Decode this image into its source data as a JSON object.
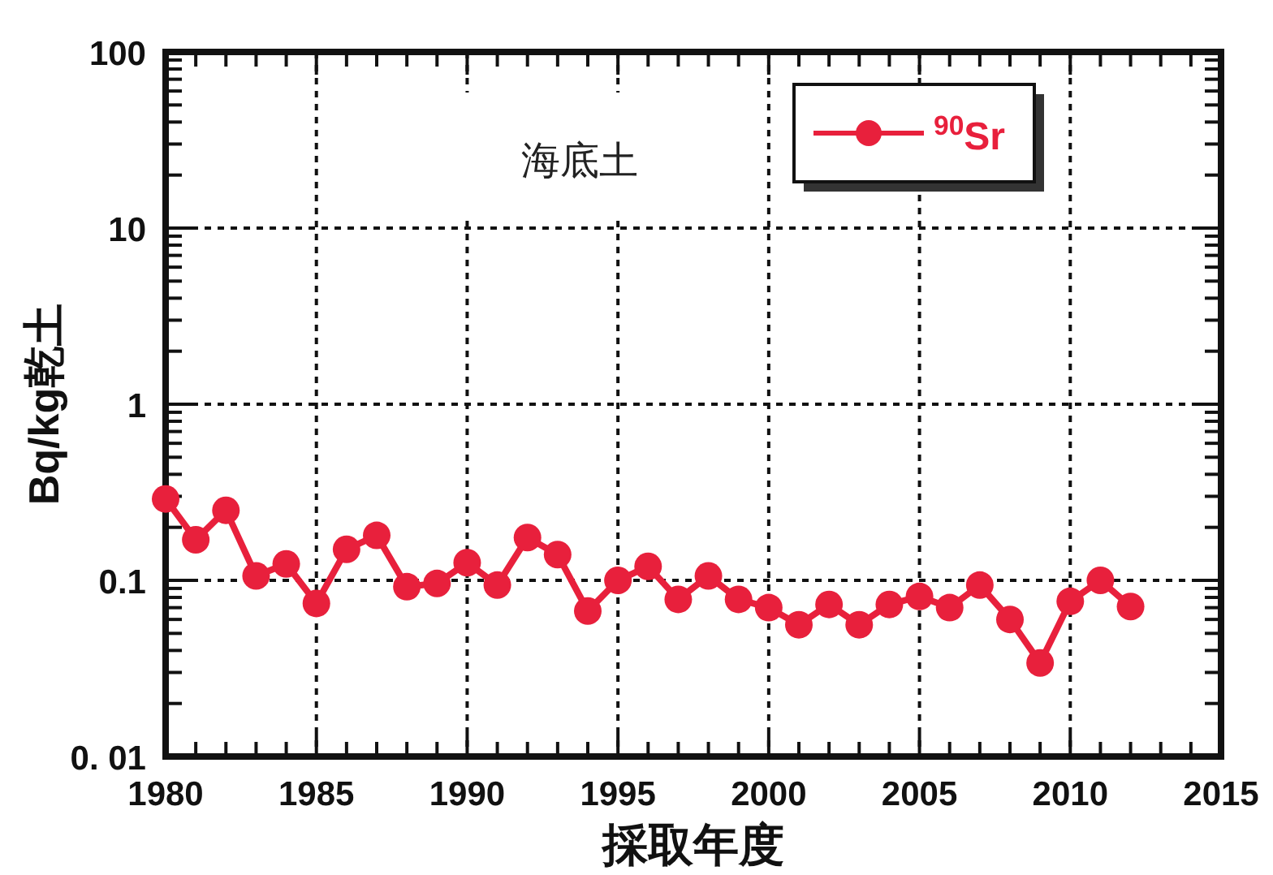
{
  "chart_data": {
    "type": "line",
    "xlabel": "採取年度",
    "ylabel": "Bq/kg乾土",
    "annotations": [
      "海底土"
    ],
    "x": [
      1980,
      1981,
      1982,
      1983,
      1984,
      1985,
      1986,
      1987,
      1988,
      1989,
      1990,
      1991,
      1992,
      1993,
      1994,
      1995,
      1996,
      1997,
      1998,
      1999,
      2000,
      2001,
      2002,
      2003,
      2004,
      2005,
      2006,
      2007,
      2008,
      2009,
      2010,
      2011,
      2012
    ],
    "series": [
      {
        "name": "$^{90}$Sr",
        "color": "#e8203c",
        "values": [
          0.29,
          0.17,
          0.25,
          0.106,
          0.124,
          0.074,
          0.15,
          0.18,
          0.092,
          0.096,
          0.126,
          0.094,
          0.175,
          0.14,
          0.067,
          0.1,
          0.12,
          0.078,
          0.106,
          0.078,
          0.07,
          0.056,
          0.073,
          0.056,
          0.073,
          0.081,
          0.07,
          0.094,
          0.06,
          0.034,
          0.076,
          0.1,
          0.071
        ]
      }
    ],
    "xlim": [
      1980,
      2015
    ],
    "xticks": [
      1980,
      1985,
      1990,
      1995,
      2000,
      2005,
      2010,
      2015
    ],
    "ylim": [
      0.01,
      100
    ],
    "yticks": [
      {
        "value": 0.01,
        "label": "0. 01"
      },
      0.1,
      1,
      10,
      100
    ],
    "log": "y",
    "grid": true,
    "legend": "top right",
    "marker": "circle",
    "line_style": "solid"
  }
}
